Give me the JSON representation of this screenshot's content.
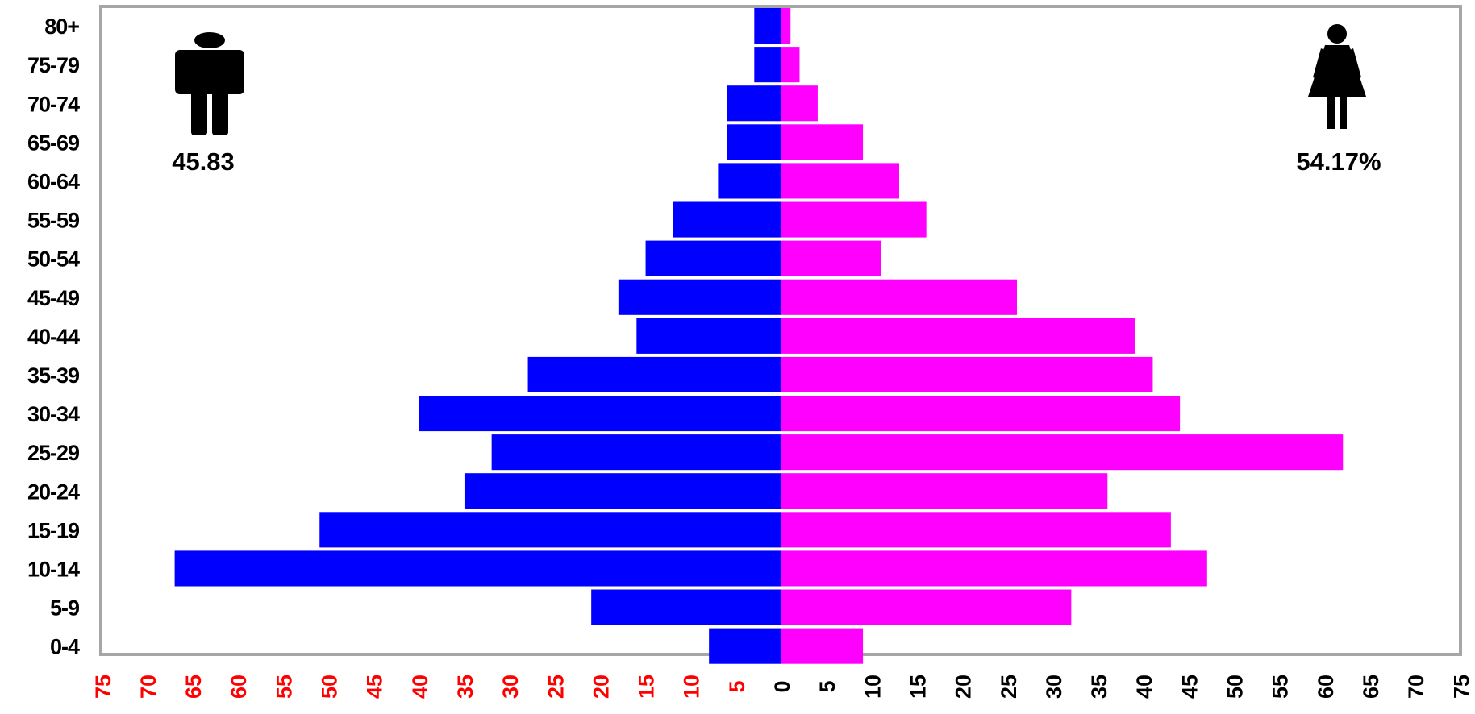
{
  "chart_data": {
    "type": "bar",
    "orientation": "horizontal",
    "style": "population-pyramid",
    "categories": [
      "0-4",
      "5-9",
      "10-14",
      "15-19",
      "20-24",
      "25-29",
      "30-34",
      "35-39",
      "40-44",
      "45-49",
      "50-54",
      "55-59",
      "60-64",
      "65-69",
      "70-74",
      "75-79",
      "80+"
    ],
    "series": [
      {
        "side": "left",
        "color": "#0000ff",
        "values": [
          8,
          21,
          67,
          51,
          35,
          32,
          40,
          28,
          16,
          18,
          15,
          12,
          7,
          6,
          6,
          3,
          3
        ],
        "total_label": "45.83"
      },
      {
        "side": "right",
        "color": "#ff00ff",
        "values": [
          9,
          32,
          47,
          43,
          36,
          62,
          44,
          41,
          39,
          26,
          11,
          16,
          13,
          9,
          4,
          2,
          1
        ],
        "total_label": "54.17%"
      }
    ],
    "x_ticks": [
      "75",
      "70",
      "65",
      "60",
      "55",
      "50",
      "45",
      "40",
      "35",
      "30",
      "25",
      "20",
      "15",
      "10",
      "5",
      "0",
      "5",
      "10",
      "15",
      "20",
      "25",
      "30",
      "35",
      "40",
      "45",
      "50",
      "55",
      "60",
      "65",
      "70",
      "75"
    ],
    "xlim": [
      -75,
      75
    ],
    "left_tick_color": "#ff0000",
    "right_tick_color": "#000000",
    "icons": {
      "left": "male-icon",
      "right": "female-icon"
    },
    "grid": false,
    "legend": "none"
  }
}
